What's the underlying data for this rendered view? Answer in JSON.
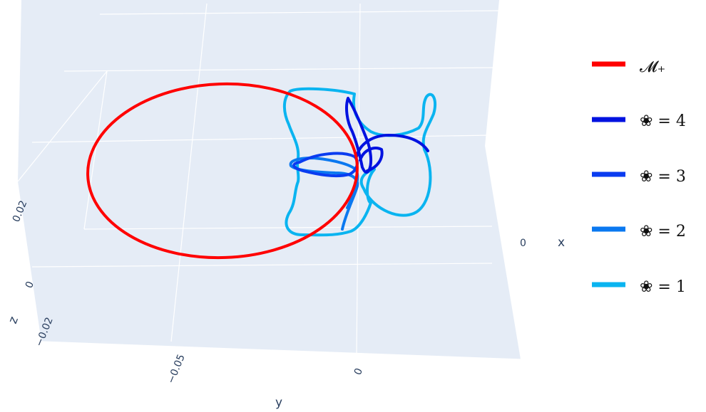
{
  "chart_data": {
    "type": "line3d",
    "axes": {
      "x": {
        "title": "x",
        "ticks": [
          "0"
        ]
      },
      "y": {
        "title": "y",
        "ticks": [
          "−0.05",
          "0"
        ]
      },
      "z": {
        "title": "z",
        "ticks": [
          "0.02",
          "0",
          "−0.02"
        ]
      }
    },
    "legend_position": "right",
    "series": [
      {
        "name": "𝓜₊",
        "color": "#ff0000"
      },
      {
        "name": "❀ = 4",
        "color": "#0012e0"
      },
      {
        "name": "❀ = 3",
        "color": "#0a3cf0"
      },
      {
        "name": "❀ = 2",
        "color": "#0a78f0"
      },
      {
        "name": "❀ = 1",
        "color": "#0ab4f0"
      }
    ]
  }
}
